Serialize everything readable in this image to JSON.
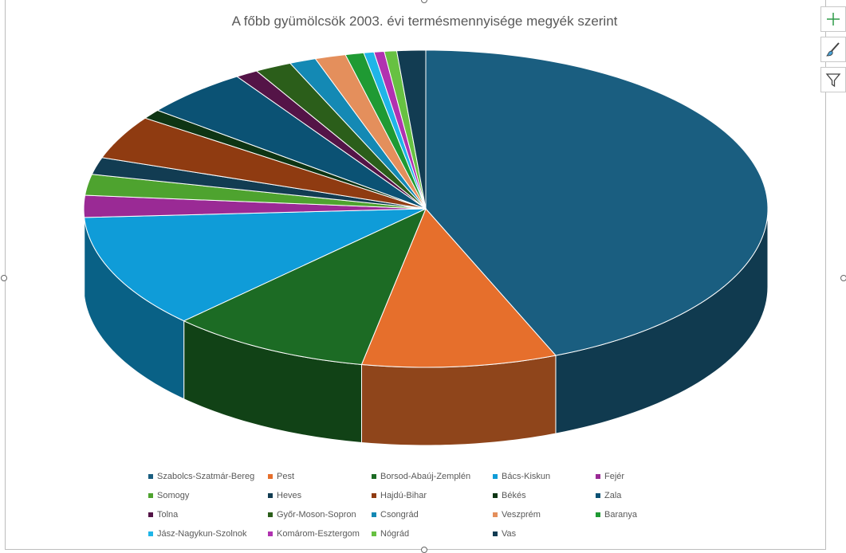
{
  "chart_data": {
    "type": "pie",
    "title": "A főbb gyümölcsök 2003. évi termésmennyisége megyék szerint",
    "legend_position": "bottom",
    "categories": [
      "Szabolcs-Szatmár-Bereg",
      "Pest",
      "Borsod-Abaúj-Zemplén",
      "Bács-Kiskun",
      "Fejér",
      "Somogy",
      "Heves",
      "Hajdú-Bihar",
      "Békés",
      "Zala",
      "Tolna",
      "Győr-Moson-Sopron",
      "Csongrád",
      "Veszprém",
      "Baranya",
      "Jász-Nagykun-Szolnok",
      "Komárom-Esztergom",
      "Nógrád",
      "Vas"
    ],
    "values": [
      45.2,
      9.5,
      9.8,
      12.0,
      2.3,
      2.2,
      1.8,
      4.6,
      1.0,
      5.2,
      1.1,
      1.8,
      1.3,
      1.5,
      0.9,
      0.5,
      0.5,
      0.6,
      1.4
    ],
    "colors": [
      "#1a5e80",
      "#e66f2c",
      "#1c6b24",
      "#0f9cd8",
      "#9a2a95",
      "#4ea32f",
      "#123c52",
      "#8f3b11",
      "#0e3514",
      "#0b5274",
      "#541447",
      "#2b5e1a",
      "#1489b4",
      "#e48f5c",
      "#1f9a33",
      "#1fb5e8",
      "#b132b0",
      "#67c142",
      "#123c52"
    ]
  },
  "icons": [
    "chart-elements-icon",
    "chart-styles-icon",
    "chart-filter-icon"
  ]
}
